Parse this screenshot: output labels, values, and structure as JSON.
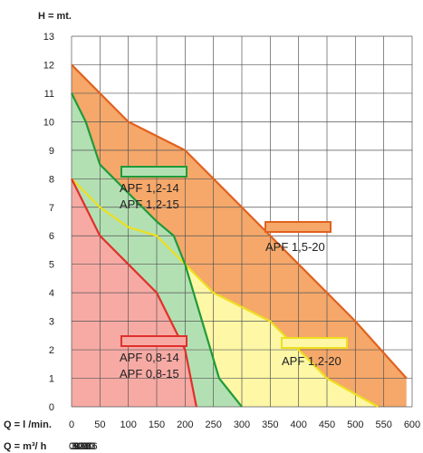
{
  "chart_data": {
    "type": "area",
    "y_axis_label": "H = mt.",
    "x_axis_label": "Q = l /min.",
    "x2_axis_label": "Q = m³/ h",
    "ylim": [
      0,
      13
    ],
    "xlim": [
      0,
      600
    ],
    "y_ticks": [
      0,
      1,
      2,
      3,
      4,
      5,
      6,
      7,
      8,
      9,
      10,
      11,
      12,
      13
    ],
    "x_ticks": [
      0,
      50,
      100,
      150,
      200,
      250,
      300,
      350,
      400,
      450,
      500,
      550,
      600
    ],
    "x2_ticks": [
      0,
      3,
      6,
      9,
      12,
      15,
      18,
      21,
      24,
      27,
      30,
      33,
      36
    ],
    "grid": true,
    "series": [
      {
        "name": "APF 1,5-20",
        "labels": [
          "APF 1,5-20"
        ],
        "fill": "#f5a86a",
        "line": "#e0621f",
        "points": [
          [
            0,
            12
          ],
          [
            100,
            10
          ],
          [
            200,
            9
          ],
          [
            300,
            7
          ],
          [
            400,
            5
          ],
          [
            500,
            3
          ],
          [
            590,
            1
          ]
        ]
      },
      {
        "name": "APF 1,2-20",
        "labels": [
          "APF 1,2-20"
        ],
        "fill": "#fdf7a6",
        "line": "#eedf20",
        "points": [
          [
            0,
            8
          ],
          [
            50,
            7
          ],
          [
            100,
            6.3
          ],
          [
            150,
            6
          ],
          [
            200,
            5
          ],
          [
            250,
            4
          ],
          [
            300,
            3.5
          ],
          [
            350,
            3
          ],
          [
            400,
            2
          ],
          [
            450,
            1
          ],
          [
            540,
            0
          ]
        ]
      },
      {
        "name": "APF 1,2-14 / APF 1,2-15",
        "labels": [
          "APF 1,2-14",
          "APF 1,2-15"
        ],
        "fill": "#b3e0b3",
        "line": "#1f9a3a",
        "points": [
          [
            0,
            11
          ],
          [
            25,
            10
          ],
          [
            50,
            8.5
          ],
          [
            100,
            7.5
          ],
          [
            150,
            6.5
          ],
          [
            180,
            6
          ],
          [
            200,
            5
          ],
          [
            230,
            3
          ],
          [
            260,
            1
          ],
          [
            300,
            0
          ]
        ]
      },
      {
        "name": "APF 0,8-14 / APF 0,8-15",
        "labels": [
          "APF 0,8-14",
          "APF 0,8-15"
        ],
        "fill": "#f7aaa4",
        "line": "#e0302a",
        "points": [
          [
            0,
            8
          ],
          [
            25,
            7
          ],
          [
            50,
            6
          ],
          [
            100,
            5
          ],
          [
            150,
            4
          ],
          [
            175,
            3
          ],
          [
            200,
            2
          ],
          [
            210,
            1
          ],
          [
            220,
            0
          ]
        ]
      }
    ]
  }
}
